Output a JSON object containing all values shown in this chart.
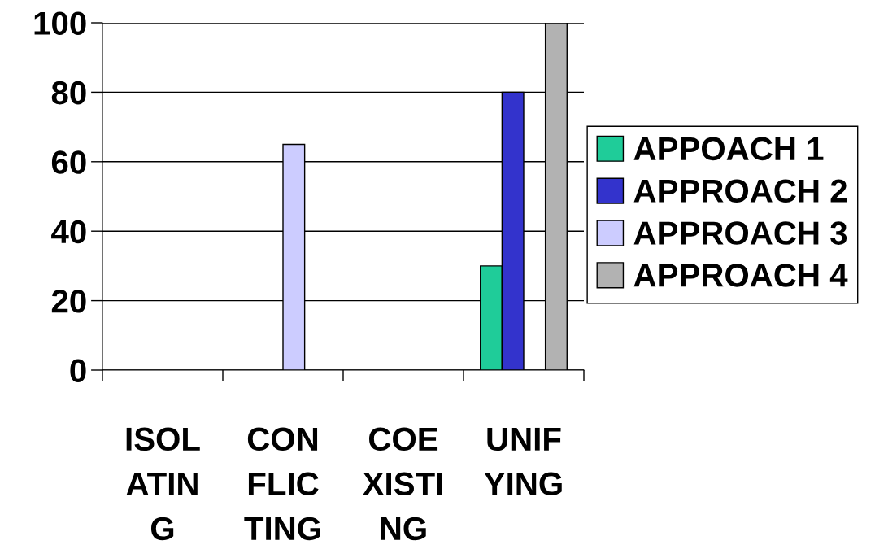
{
  "chart_data": {
    "type": "bar",
    "categories": [
      "ISOL\nATIN\nG",
      "CON\nFLIC\nTING",
      "COE\nXISTI\nNG",
      "UNIF\nYING"
    ],
    "series": [
      {
        "name": "APPOACH 1",
        "color": "#1fcc99",
        "values": [
          null,
          null,
          null,
          30
        ]
      },
      {
        "name": "APPROACH 2",
        "color": "#3333cc",
        "values": [
          null,
          null,
          null,
          80
        ]
      },
      {
        "name": "APPROACH 3",
        "color": "#ccccff",
        "values": [
          null,
          65,
          null,
          null
        ]
      },
      {
        "name": "APPROACH 4",
        "color": "#b2b2b2",
        "values": [
          null,
          null,
          null,
          100
        ]
      }
    ],
    "ylim": [
      0,
      100
    ],
    "yticks": [
      0,
      20,
      40,
      60,
      80,
      100
    ],
    "grid": "y",
    "legend": "right"
  }
}
